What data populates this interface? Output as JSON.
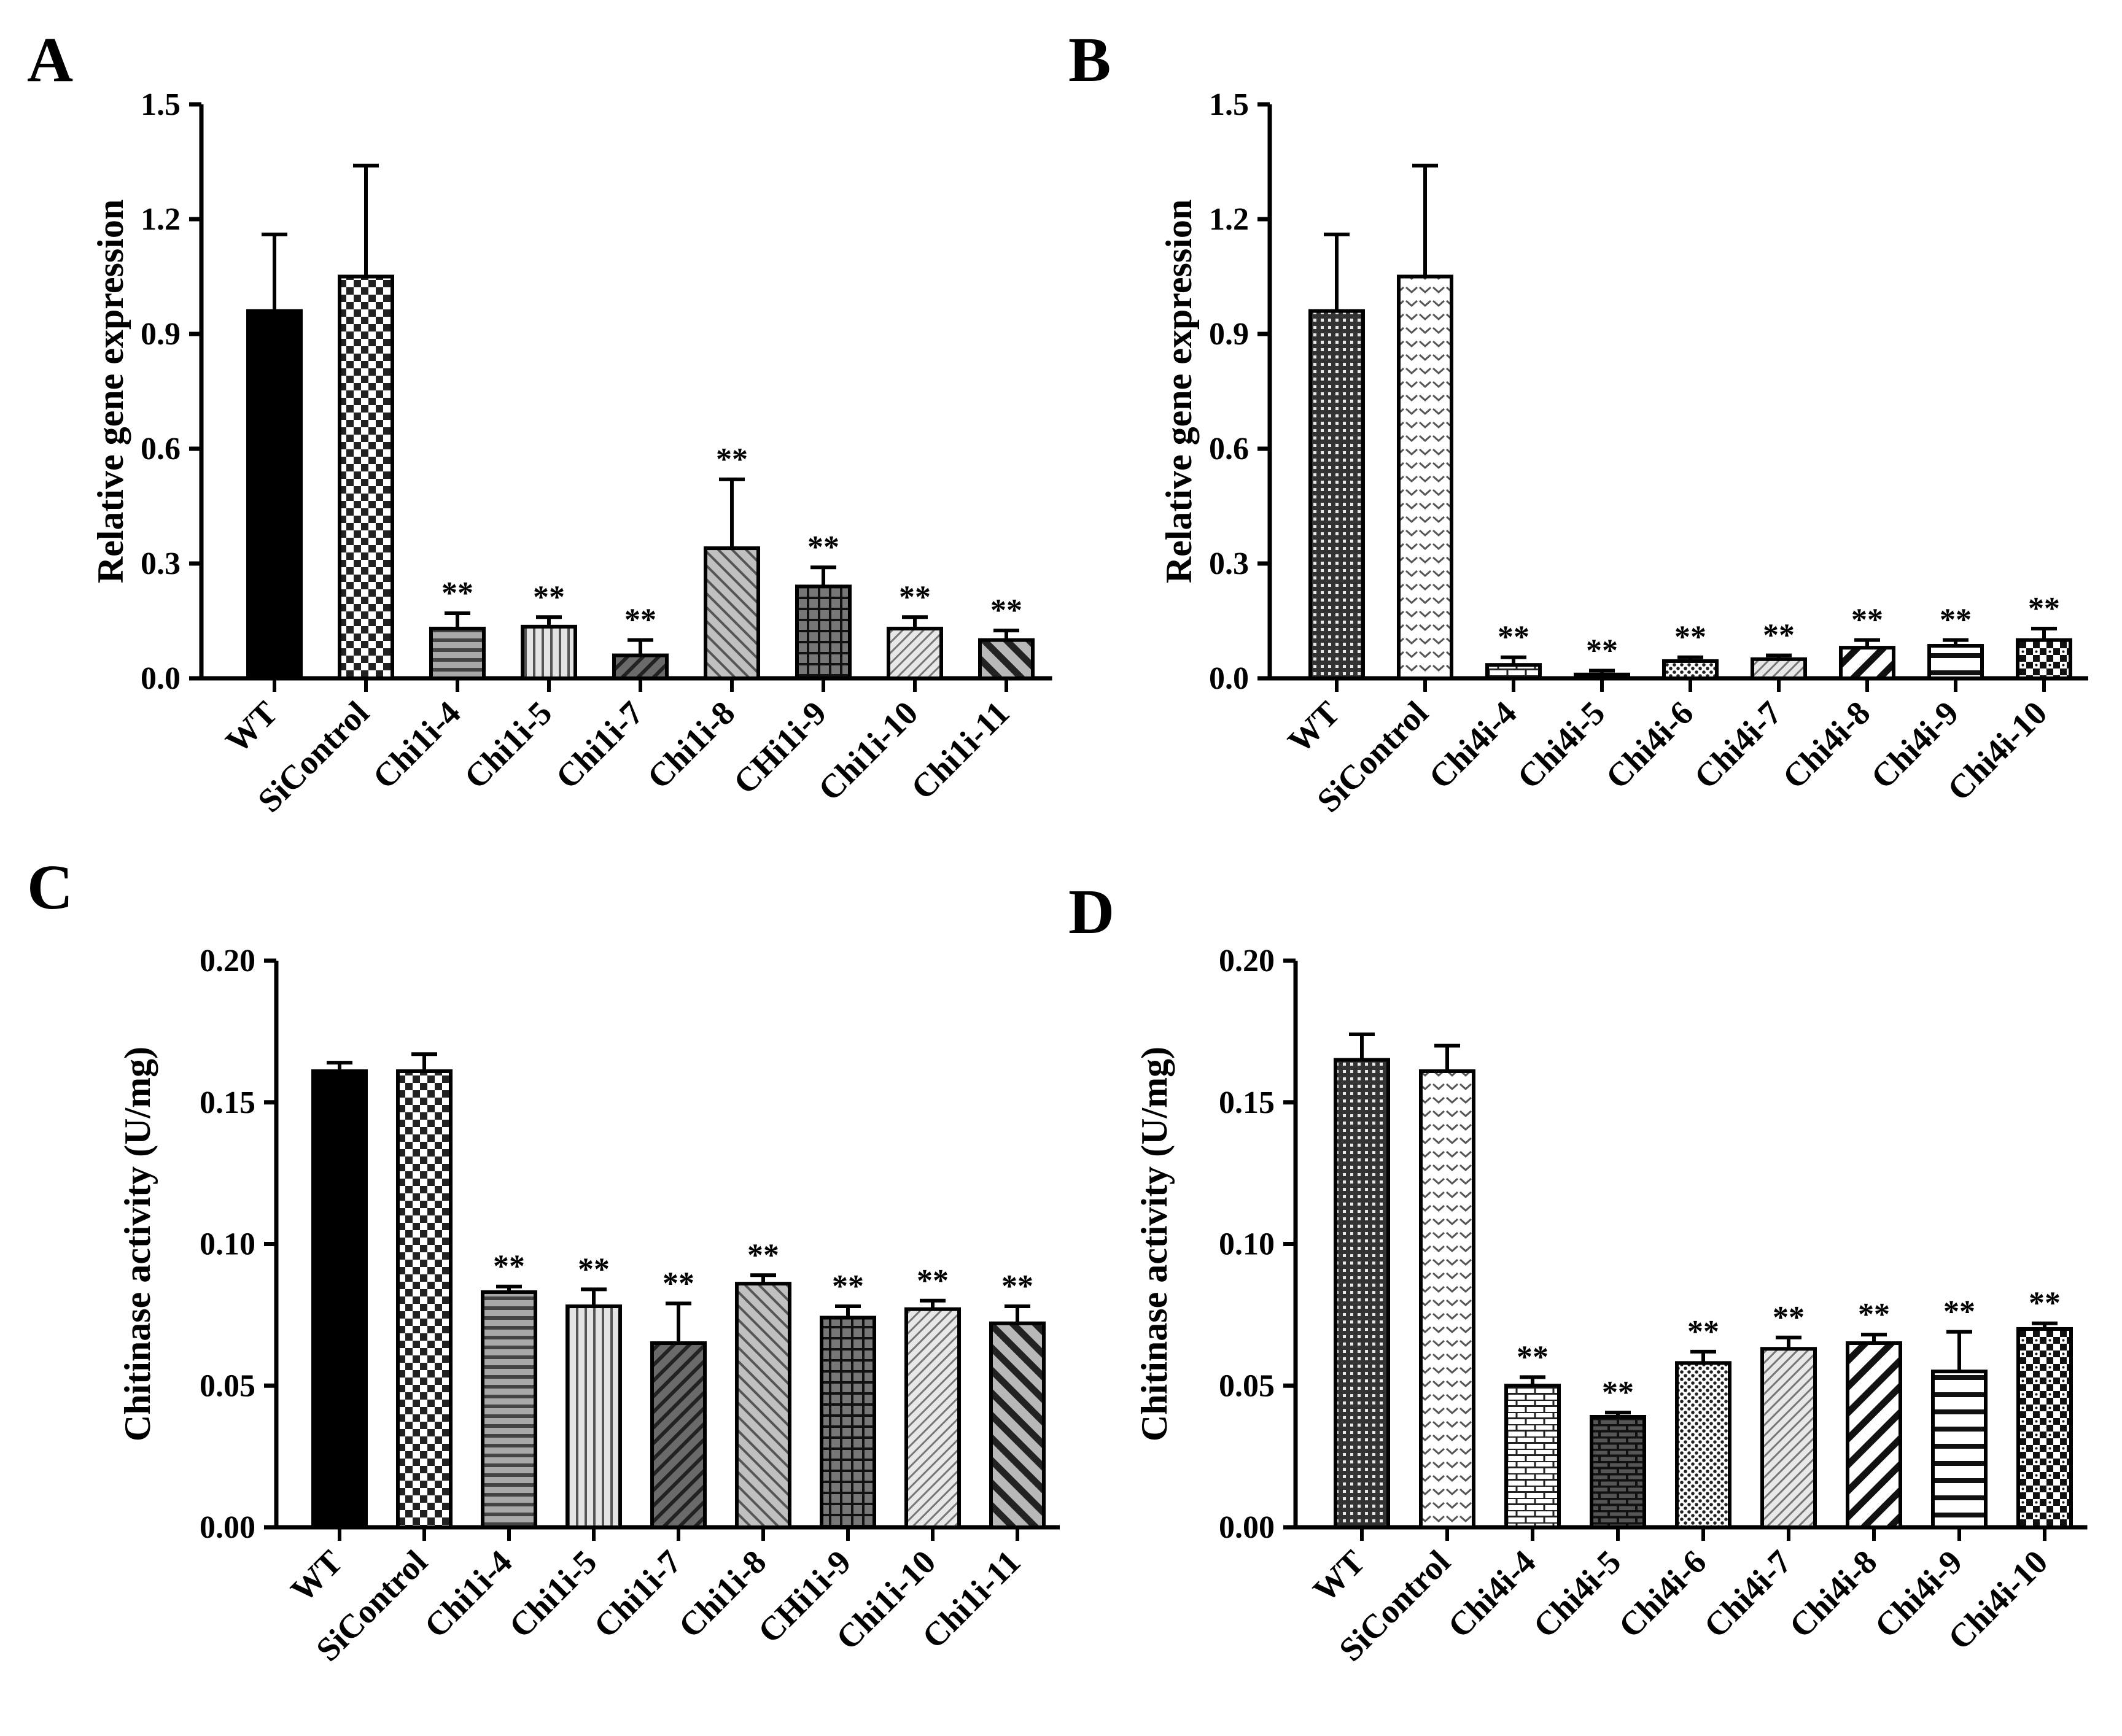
{
  "figure": {
    "panels": [
      "A",
      "B",
      "C",
      "D"
    ]
  },
  "chart_data": [
    {
      "panel": "A",
      "type": "bar",
      "ylabel": "Relative gene expression",
      "xlabel": "",
      "ylim": [
        0,
        1.5
      ],
      "yticks": [
        "0.0",
        "0.3",
        "0.6",
        "0.9",
        "1.2",
        "1.5"
      ],
      "categories": [
        "WT",
        "SiControl",
        "Chi1i-4",
        "Chi1i-5",
        "Chi1i-7",
        "Chi1i-8",
        "CHi1i-9",
        "Chi1i-10",
        "Chi1i-11"
      ],
      "values": [
        0.96,
        1.05,
        0.13,
        0.135,
        0.06,
        0.34,
        0.24,
        0.13,
        0.1
      ],
      "errors": [
        0.2,
        0.29,
        0.04,
        0.025,
        0.04,
        0.18,
        0.05,
        0.03,
        0.025
      ],
      "significance": [
        "",
        "",
        "**",
        "**",
        "**",
        "**",
        "**",
        "**",
        "**"
      ],
      "patterns": [
        "solid",
        "checker",
        "hstripe",
        "vstripe",
        "diag-dark",
        "diag-light",
        "grid",
        "diag-fine",
        "diag-thick"
      ]
    },
    {
      "panel": "B",
      "type": "bar",
      "ylabel": "Relative gene expression",
      "xlabel": "",
      "ylim": [
        0,
        1.5
      ],
      "yticks": [
        "0.0",
        "0.3",
        "0.6",
        "0.9",
        "1.2",
        "1.5"
      ],
      "categories": [
        "WT",
        "SiControl",
        "Chi4i-4",
        "Chi4i-5",
        "Chi4i-6",
        "Chi4i-7",
        "Chi4i-8",
        "Chi4i-9",
        "Chi4i-10"
      ],
      "values": [
        0.96,
        1.05,
        0.035,
        0.01,
        0.045,
        0.05,
        0.08,
        0.085,
        0.1
      ],
      "errors": [
        0.2,
        0.29,
        0.02,
        0.01,
        0.01,
        0.01,
        0.02,
        0.015,
        0.03
      ],
      "significance": [
        "",
        "",
        "**",
        "**",
        "**",
        "**",
        "**",
        "**",
        "**"
      ],
      "patterns": [
        "dense-dots",
        "chevron",
        "brick",
        "brick-dark",
        "dots",
        "diag-fine",
        "diag-bold",
        "hstripe-bold",
        "checker-dots"
      ]
    },
    {
      "panel": "C",
      "type": "bar",
      "ylabel": "Chitinase activity (U/mg)",
      "xlabel": "",
      "ylim": [
        0,
        0.2
      ],
      "yticks": [
        "0.00",
        "0.05",
        "0.10",
        "0.15",
        "0.20"
      ],
      "categories": [
        "WT",
        "SiControl",
        "Chi1i-4",
        "Chi1i-5",
        "Chi1i-7",
        "Chi1i-8",
        "CHi1i-9",
        "Chi1i-10",
        "Chi1i-11"
      ],
      "values": [
        0.161,
        0.161,
        0.083,
        0.078,
        0.065,
        0.086,
        0.074,
        0.077,
        0.072
      ],
      "errors": [
        0.003,
        0.006,
        0.002,
        0.006,
        0.014,
        0.003,
        0.004,
        0.003,
        0.006
      ],
      "significance": [
        "",
        "",
        "**",
        "**",
        "**",
        "**",
        "**",
        "**",
        "**"
      ],
      "patterns": [
        "solid",
        "checker",
        "hstripe",
        "vstripe",
        "diag-dark",
        "diag-light",
        "grid",
        "diag-fine",
        "diag-thick"
      ]
    },
    {
      "panel": "D",
      "type": "bar",
      "ylabel": "Chitinase activity (U/mg)",
      "xlabel": "",
      "ylim": [
        0,
        0.2
      ],
      "yticks": [
        "0.00",
        "0.05",
        "0.10",
        "0.15",
        "0.20"
      ],
      "categories": [
        "WT",
        "SiControl",
        "Chi4i-4",
        "Chi4i-5",
        "Chi4i-6",
        "Chi4i-7",
        "Chi4i-8",
        "Chi4i-9",
        "Chi4i-10"
      ],
      "values": [
        0.165,
        0.161,
        0.05,
        0.039,
        0.058,
        0.063,
        0.065,
        0.055,
        0.07
      ],
      "errors": [
        0.009,
        0.009,
        0.003,
        0.0015,
        0.004,
        0.004,
        0.003,
        0.014,
        0.002
      ],
      "significance": [
        "",
        "",
        "**",
        "**",
        "**",
        "**",
        "**",
        "**",
        "**"
      ],
      "patterns": [
        "dense-dots",
        "chevron",
        "brick",
        "brick-dark",
        "dots",
        "diag-fine",
        "diag-bold",
        "hstripe-bold",
        "checker-dots"
      ]
    }
  ]
}
